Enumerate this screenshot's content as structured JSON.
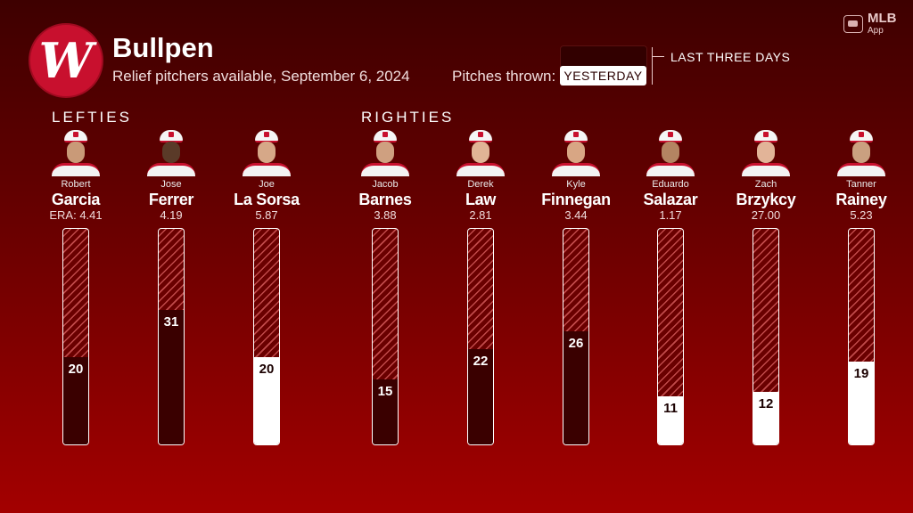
{
  "header": {
    "title": "Bullpen",
    "subtitle": "Relief pitchers available, September 6, 2024",
    "logo_letter": "W",
    "mlb_app": "MLB",
    "mlb_app_sub": "App"
  },
  "legend": {
    "label": "Pitches thrown:",
    "three_days": "LAST THREE DAYS",
    "yesterday": "YESTERDAY"
  },
  "groups": {
    "lefties": "LEFTIES",
    "righties": "RIGHTIES"
  },
  "colors": {
    "last_three_days": "#3a0000",
    "yesterday": "#ffffff",
    "accent": "#c8102e"
  },
  "chart_data": {
    "type": "bar",
    "y_unit": "pitches",
    "ylim": [
      0,
      50
    ],
    "players": [
      {
        "first": "Robert",
        "last": "Garcia",
        "era": "ERA: 4.41",
        "group": "LEFTIES",
        "pitches": 20,
        "window": "last_three_days"
      },
      {
        "first": "Jose",
        "last": "Ferrer",
        "era": "4.19",
        "group": "LEFTIES",
        "pitches": 31,
        "window": "last_three_days"
      },
      {
        "first": "Joe",
        "last": "La Sorsa",
        "era": "5.87",
        "group": "LEFTIES",
        "pitches": 20,
        "window": "yesterday"
      },
      {
        "first": "Jacob",
        "last": "Barnes",
        "era": "3.88",
        "group": "RIGHTIES",
        "pitches": 15,
        "window": "last_three_days"
      },
      {
        "first": "Derek",
        "last": "Law",
        "era": "2.81",
        "group": "RIGHTIES",
        "pitches": 22,
        "window": "last_three_days"
      },
      {
        "first": "Kyle",
        "last": "Finnegan",
        "era": "3.44",
        "group": "RIGHTIES",
        "pitches": 26,
        "window": "last_three_days"
      },
      {
        "first": "Eduardo",
        "last": "Salazar",
        "era": "1.17",
        "group": "RIGHTIES",
        "pitches": 11,
        "window": "yesterday"
      },
      {
        "first": "Zach",
        "last": "Brzykcy",
        "era": "27.00",
        "group": "RIGHTIES",
        "pitches": 12,
        "window": "yesterday"
      },
      {
        "first": "Tanner",
        "last": "Rainey",
        "era": "5.23",
        "group": "RIGHTIES",
        "pitches": 19,
        "window": "yesterday"
      }
    ]
  }
}
